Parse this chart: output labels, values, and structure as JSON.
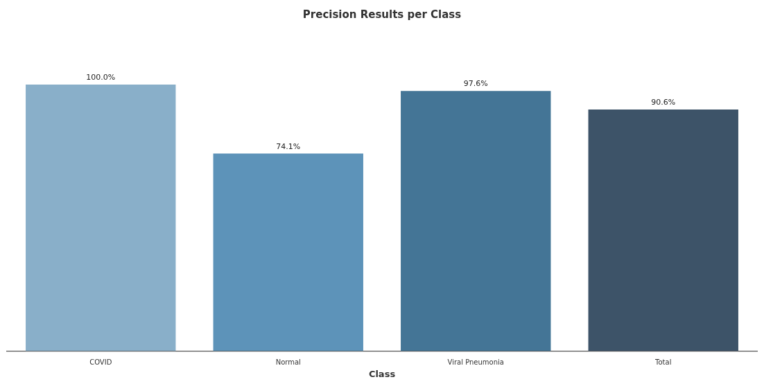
{
  "chart_data": {
    "type": "bar",
    "title": "Precision Results per Class",
    "xlabel": "Class",
    "categories": [
      "COVID",
      "Normal",
      "Viral Pneumonia",
      "Total"
    ],
    "values": [
      100.0,
      74.1,
      97.6,
      90.6
    ],
    "value_labels": [
      "100.0%",
      "74.1%",
      "97.6%",
      "90.6%"
    ],
    "colors": [
      "#89afc9",
      "#5d93b9",
      "#447596",
      "#3d5368"
    ],
    "grid": false,
    "legend": false
  }
}
